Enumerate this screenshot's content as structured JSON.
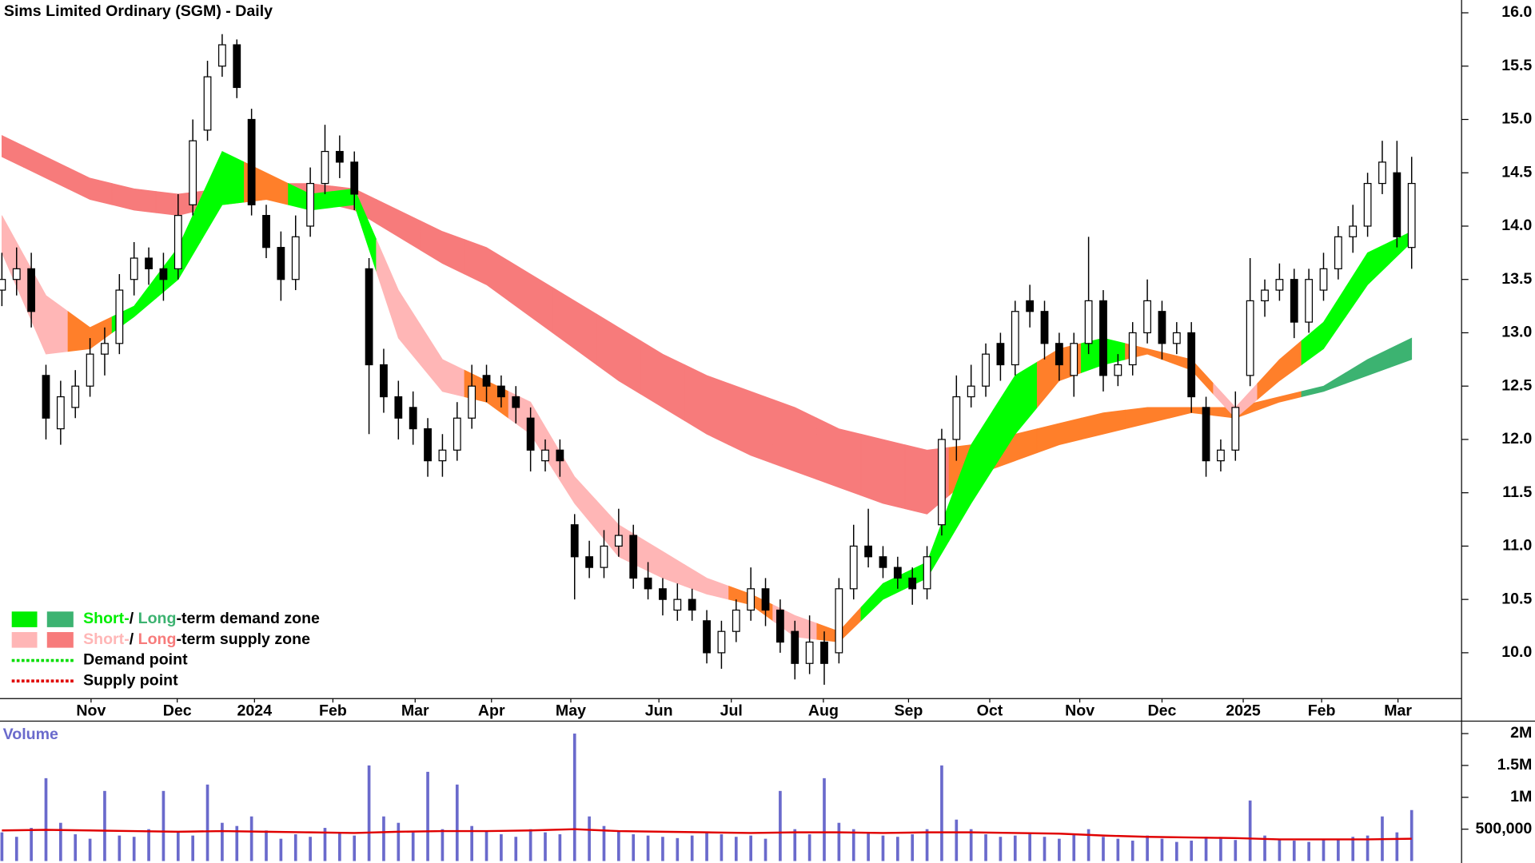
{
  "chart_data": [
    {
      "type": "candlestick",
      "title": "Sims Limited Ordinary (SGM) - Daily",
      "x": [
        0,
        1,
        2,
        3,
        4,
        5,
        6,
        7,
        8,
        9,
        10,
        11,
        12,
        13,
        14,
        15,
        16,
        17,
        18,
        19,
        20,
        21,
        22,
        23,
        24,
        25,
        26,
        27,
        28,
        29,
        30,
        31,
        32,
        33,
        34,
        35,
        36,
        37,
        38,
        39,
        40,
        41,
        42,
        43,
        44,
        45,
        46,
        47,
        48,
        49,
        50,
        51,
        52,
        53,
        54,
        55,
        56,
        57,
        58,
        59,
        60,
        61,
        62,
        63,
        64,
        65,
        66,
        67,
        68,
        69,
        70,
        71,
        72,
        73,
        74,
        75,
        76,
        77,
        78,
        79,
        80,
        81,
        82,
        83,
        84,
        85,
        86,
        87,
        88,
        89,
        90,
        91,
        92,
        93,
        94,
        95,
        96
      ],
      "open": [
        13.4,
        13.5,
        13.6,
        12.6,
        12.1,
        12.3,
        12.5,
        12.8,
        12.9,
        13.5,
        13.7,
        13.6,
        13.6,
        14.2,
        14.9,
        15.5,
        15.7,
        15.0,
        14.1,
        13.8,
        13.5,
        14.0,
        14.4,
        14.7,
        14.6,
        13.6,
        12.7,
        12.4,
        12.3,
        12.1,
        11.8,
        11.9,
        12.2,
        12.6,
        12.5,
        12.4,
        12.2,
        11.8,
        11.9,
        11.2,
        10.9,
        10.8,
        11.0,
        11.1,
        10.7,
        10.6,
        10.4,
        10.5,
        10.3,
        10.0,
        10.2,
        10.4,
        10.6,
        10.4,
        10.2,
        9.9,
        10.1,
        10.0,
        10.6,
        11.0,
        10.9,
        10.8,
        10.7,
        10.6,
        11.2,
        12.0,
        12.4,
        12.5,
        12.9,
        12.7,
        13.3,
        13.2,
        12.9,
        12.6,
        12.9,
        13.3,
        12.6,
        12.7,
        13.0,
        13.2,
        12.9,
        13.0,
        12.3,
        11.8,
        11.9,
        12.6,
        13.3,
        13.4,
        13.5,
        13.1,
        13.4,
        13.6,
        13.9,
        14.0,
        14.4,
        14.5,
        13.8
      ],
      "high": [
        13.75,
        13.8,
        13.75,
        12.7,
        12.55,
        12.65,
        12.95,
        13.05,
        13.55,
        13.85,
        13.8,
        13.75,
        14.3,
        15.0,
        15.55,
        15.8,
        15.75,
        15.1,
        14.2,
        13.95,
        14.1,
        14.55,
        14.95,
        14.85,
        14.7,
        13.7,
        12.85,
        12.55,
        12.45,
        12.2,
        12.05,
        12.35,
        12.7,
        12.7,
        12.6,
        12.5,
        12.3,
        12.0,
        12.0,
        11.3,
        11.05,
        11.15,
        11.35,
        11.2,
        10.85,
        10.7,
        10.65,
        10.6,
        10.4,
        10.3,
        10.5,
        10.8,
        10.7,
        10.5,
        10.3,
        10.35,
        10.2,
        10.7,
        11.2,
        11.35,
        11.0,
        10.9,
        10.8,
        11.0,
        12.1,
        12.6,
        12.7,
        12.9,
        13.0,
        13.3,
        13.45,
        13.3,
        13.0,
        13.0,
        13.9,
        13.4,
        12.8,
        13.1,
        13.5,
        13.3,
        13.1,
        13.1,
        12.4,
        12.0,
        12.45,
        13.7,
        13.5,
        13.65,
        13.6,
        13.6,
        13.75,
        14.0,
        14.2,
        14.5,
        14.8,
        14.8,
        14.65
      ],
      "low": [
        13.25,
        13.35,
        13.05,
        12.0,
        11.95,
        12.2,
        12.4,
        12.6,
        12.8,
        13.35,
        13.45,
        13.3,
        13.5,
        14.1,
        14.8,
        15.4,
        15.2,
        14.1,
        13.7,
        13.3,
        13.4,
        13.9,
        14.3,
        14.45,
        14.15,
        12.05,
        12.25,
        12.0,
        11.95,
        11.65,
        11.65,
        11.8,
        12.1,
        12.35,
        12.3,
        12.15,
        11.7,
        11.7,
        11.65,
        10.5,
        10.7,
        10.7,
        10.9,
        10.6,
        10.5,
        10.35,
        10.3,
        10.3,
        9.9,
        9.85,
        10.1,
        10.3,
        10.25,
        10.0,
        9.75,
        9.8,
        9.7,
        9.9,
        10.5,
        10.8,
        10.7,
        10.6,
        10.45,
        10.5,
        11.1,
        11.8,
        12.3,
        12.4,
        12.55,
        12.6,
        13.05,
        12.75,
        12.55,
        12.4,
        12.8,
        12.45,
        12.5,
        12.6,
        12.9,
        12.75,
        12.8,
        12.25,
        11.65,
        11.7,
        11.8,
        12.5,
        13.15,
        13.3,
        12.95,
        13.0,
        13.3,
        13.5,
        13.75,
        13.9,
        14.3,
        13.8,
        13.6
      ],
      "close": [
        13.5,
        13.6,
        13.2,
        12.2,
        12.4,
        12.5,
        12.8,
        12.9,
        13.4,
        13.7,
        13.6,
        13.5,
        14.1,
        14.8,
        15.4,
        15.7,
        15.3,
        14.2,
        13.8,
        13.5,
        13.9,
        14.4,
        14.7,
        14.6,
        14.3,
        12.7,
        12.4,
        12.2,
        12.1,
        11.8,
        11.9,
        12.2,
        12.5,
        12.5,
        12.4,
        12.3,
        11.9,
        11.9,
        11.8,
        10.9,
        10.8,
        11.0,
        11.1,
        10.7,
        10.6,
        10.5,
        10.5,
        10.4,
        10.0,
        10.2,
        10.4,
        10.6,
        10.4,
        10.1,
        9.9,
        10.1,
        9.9,
        10.6,
        11.0,
        10.9,
        10.8,
        10.7,
        10.6,
        10.9,
        12.0,
        12.4,
        12.5,
        12.8,
        12.7,
        13.2,
        13.2,
        12.9,
        12.7,
        12.9,
        13.3,
        12.6,
        12.7,
        13.0,
        13.3,
        12.9,
        13.0,
        12.4,
        11.8,
        11.9,
        12.3,
        13.3,
        13.4,
        13.5,
        13.1,
        13.5,
        13.6,
        13.9,
        14.0,
        14.4,
        14.6,
        13.9,
        14.4
      ],
      "xlim": [
        -0.13,
        99.4
      ],
      "ylim": [
        9.57,
        16.12
      ],
      "yticks": [
        {
          "value": 10,
          "label": "10.0"
        },
        10.5,
        {
          "value": 11,
          "label": "11.0"
        },
        11.5,
        {
          "value": 12,
          "label": "12.0"
        },
        12.5,
        {
          "value": 13,
          "label": "13.0"
        },
        13.5,
        {
          "value": 14,
          "label": "14.0"
        },
        14.5,
        {
          "value": 15,
          "label": "15.0"
        },
        15.5,
        {
          "value": 16,
          "label": "16.0"
        }
      ],
      "xticks": [
        {
          "value": 6.07,
          "label": "Nov"
        },
        {
          "value": 11.94,
          "label": "Dec"
        },
        {
          "value": 17.2,
          "label": "2024"
        },
        {
          "value": 22.54,
          "label": "Feb"
        },
        {
          "value": 28.14,
          "label": "Mar"
        },
        {
          "value": 33.34,
          "label": "Apr"
        },
        {
          "value": 38.74,
          "label": "May"
        },
        {
          "value": 44.74,
          "label": "Jun"
        },
        {
          "value": 49.67,
          "label": "Jul"
        },
        {
          "value": 55.94,
          "label": "Aug"
        },
        {
          "value": 61.74,
          "label": "Sep"
        },
        {
          "value": 67.27,
          "label": "Oct"
        },
        {
          "value": 73.4,
          "label": "Nov"
        },
        {
          "value": 79.0,
          "label": "Dec"
        },
        {
          "value": 84.53,
          "label": "2025"
        },
        {
          "value": 89.87,
          "label": "Feb"
        },
        {
          "value": 95.07,
          "label": "Mar"
        }
      ],
      "bands": [
        {
          "x": [
            0,
            3,
            6,
            9,
            12,
            15,
            18,
            21,
            24,
            27,
            30,
            33,
            36,
            39,
            42,
            45,
            48,
            51,
            54,
            57,
            60,
            63,
            66,
            69,
            72,
            75,
            78,
            81,
            84,
            87,
            90,
            93,
            96
          ],
          "upper": [
            14.85,
            14.65,
            14.45,
            14.35,
            14.3,
            14.35,
            14.4,
            14.4,
            14.35,
            14.15,
            13.95,
            13.8,
            13.55,
            13.3,
            13.05,
            12.8,
            12.6,
            12.45,
            12.3,
            12.1,
            12.0,
            11.9,
            11.95,
            12.05,
            12.15,
            12.25,
            12.3,
            12.3,
            12.3,
            12.4,
            12.5,
            12.75,
            12.95
          ],
          "lower": [
            14.65,
            14.45,
            14.25,
            14.15,
            14.1,
            14.2,
            14.25,
            14.25,
            14.15,
            13.9,
            13.65,
            13.45,
            13.15,
            12.85,
            12.55,
            12.3,
            12.05,
            11.85,
            11.7,
            11.55,
            11.4,
            11.3,
            11.65,
            11.8,
            11.95,
            12.05,
            12.15,
            12.25,
            12.2,
            12.35,
            12.45,
            12.6,
            12.75
          ],
          "colors": [
            "#f77b7b",
            "#f77b7b",
            "#f77b7b",
            "#f77b7b",
            "#f77b7b",
            "#f77b7b",
            "#f77b7b",
            "#f77b7b",
            "#f77b7b",
            "#f77b7b",
            "#f77b7b",
            "#f77b7b",
            "#f77b7b",
            "#f77b7b",
            "#f77b7b",
            "#f77b7b",
            "#f77b7b",
            "#f77b7b",
            "#f77b7b",
            "#f77b7b",
            "#f77b7b",
            "#f77b7b",
            "#ff7f2a",
            "#ff7f2a",
            "#ff7f2a",
            "#ff7f2a",
            "#ff7f2a",
            "#ff7f2a",
            "#ff7f2a",
            "#ff7f2a",
            "#3cb371",
            "#3cb371",
            "#3cb371"
          ]
        },
        {
          "x": [
            0,
            3,
            6,
            9,
            12,
            15,
            18,
            21,
            24,
            27,
            30,
            33,
            36,
            39,
            42,
            45,
            48,
            51,
            54,
            57,
            60,
            63,
            66,
            69,
            72,
            75,
            78,
            81,
            84,
            87,
            90,
            93,
            96
          ],
          "upper": [
            14.1,
            13.35,
            13.05,
            13.25,
            13.8,
            14.7,
            14.5,
            14.3,
            14.35,
            13.4,
            12.75,
            12.55,
            12.35,
            11.65,
            11.2,
            10.95,
            10.7,
            10.55,
            10.35,
            10.2,
            10.65,
            10.85,
            11.95,
            12.6,
            12.85,
            12.95,
            12.85,
            12.75,
            12.3,
            12.75,
            13.1,
            13.75,
            13.95
          ],
          "lower": [
            13.75,
            12.8,
            12.85,
            13.15,
            13.5,
            14.2,
            14.25,
            14.15,
            14.2,
            12.95,
            12.45,
            12.35,
            12.05,
            11.4,
            10.9,
            10.7,
            10.55,
            10.45,
            10.15,
            10.1,
            10.5,
            10.7,
            11.4,
            12.05,
            12.55,
            12.7,
            12.8,
            12.65,
            12.2,
            12.55,
            12.85,
            13.45,
            13.85
          ],
          "colors": [
            "#ffb6b6",
            "#ffb6b6",
            "#ff7f2a",
            "#00ff00",
            "#00ff00",
            "#00ff00",
            "#ff7f2a",
            "#00ff00",
            "#00ff00",
            "#ffb6b6",
            "#ffb6b6",
            "#ff7f2a",
            "#ffb6b6",
            "#ffb6b6",
            "#ffb6b6",
            "#ffb6b6",
            "#ffb6b6",
            "#ff7f2a",
            "#ffb6b6",
            "#ff7f2a",
            "#00ff00",
            "#00ff00",
            "#00ff00",
            "#00ff00",
            "#ff7f2a",
            "#00ff00",
            "#ff7f2a",
            "#ff7f2a",
            "#ffb6b6",
            "#ff7f2a",
            "#00ff00",
            "#00ff00",
            "#00ff00"
          ]
        }
      ],
      "legend": [
        {
          "short": "Short-",
          "sep": "/ ",
          "long": "Long",
          "text": "-term demand zone",
          "short_color": "#00ee00",
          "long_color": "#3cb371"
        },
        {
          "short": "Short-",
          "sep": "/ ",
          "long": "Long",
          "text": "-term supply zone",
          "short_color": "#ffb6b6",
          "long_color": "#f77b7b"
        },
        {
          "text": "Demand point",
          "line_color": "#00dd00"
        },
        {
          "text": "Supply point",
          "line_color": "#e00000"
        }
      ]
    },
    {
      "type": "bar",
      "title": "Volume",
      "color": "#6a6acc",
      "x": [
        0,
        1,
        2,
        3,
        4,
        5,
        6,
        7,
        8,
        9,
        10,
        11,
        12,
        13,
        14,
        15,
        16,
        17,
        18,
        19,
        20,
        21,
        22,
        23,
        24,
        25,
        26,
        27,
        28,
        29,
        30,
        31,
        32,
        33,
        34,
        35,
        36,
        37,
        38,
        39,
        40,
        41,
        42,
        43,
        44,
        45,
        46,
        47,
        48,
        49,
        50,
        51,
        52,
        53,
        54,
        55,
        56,
        57,
        58,
        59,
        60,
        61,
        62,
        63,
        64,
        65,
        66,
        67,
        68,
        69,
        70,
        71,
        72,
        73,
        74,
        75,
        76,
        77,
        78,
        79,
        80,
        81,
        82,
        83,
        84,
        85,
        86,
        87,
        88,
        89,
        90,
        91,
        92,
        93,
        94,
        95,
        96
      ],
      "values": [
        450000,
        380000,
        520000,
        1300000,
        600000,
        420000,
        350000,
        1100000,
        400000,
        380000,
        500000,
        1100000,
        450000,
        400000,
        1200000,
        600000,
        550000,
        700000,
        480000,
        350000,
        420000,
        380000,
        520000,
        450000,
        400000,
        1500000,
        700000,
        600000,
        450000,
        1400000,
        500000,
        1200000,
        550000,
        480000,
        420000,
        380000,
        500000,
        450000,
        420000,
        2000000,
        700000,
        550000,
        480000,
        420000,
        400000,
        380000,
        360000,
        400000,
        450000,
        420000,
        380000,
        400000,
        350000,
        1100000,
        500000,
        420000,
        1300000,
        600000,
        500000,
        450000,
        400000,
        380000,
        420000,
        500000,
        1500000,
        650000,
        500000,
        420000,
        380000,
        400000,
        450000,
        380000,
        350000,
        420000,
        500000,
        380000,
        350000,
        320000,
        400000,
        350000,
        300000,
        320000,
        380000,
        350000,
        330000,
        950000,
        400000,
        350000,
        320000,
        300000,
        330000,
        350000,
        380000,
        400000,
        700000,
        450000,
        800000
      ],
      "xlim": [
        -0.13,
        99.4
      ],
      "ylim": [
        0,
        2180000
      ],
      "yticks": [
        {
          "value": 500000,
          "label": "500,000"
        },
        {
          "value": 1000000,
          "label": "1M"
        },
        {
          "value": 1500000,
          "label": "1.5M"
        },
        {
          "value": 2000000,
          "label": "2M"
        }
      ],
      "ma": {
        "color": "#e00000",
        "x": [
          0,
          3,
          6,
          9,
          12,
          15,
          18,
          21,
          24,
          27,
          30,
          33,
          36,
          39,
          42,
          45,
          48,
          51,
          54,
          57,
          60,
          63,
          66,
          69,
          72,
          75,
          78,
          81,
          84,
          87,
          90,
          93,
          96
        ],
        "values": [
          480000,
          490000,
          480000,
          470000,
          460000,
          470000,
          460000,
          450000,
          440000,
          460000,
          470000,
          470000,
          480000,
          500000,
          470000,
          460000,
          450000,
          440000,
          450000,
          450000,
          440000,
          450000,
          450000,
          440000,
          430000,
          400000,
          380000,
          370000,
          360000,
          340000,
          340000,
          340000,
          350000
        ]
      }
    }
  ]
}
